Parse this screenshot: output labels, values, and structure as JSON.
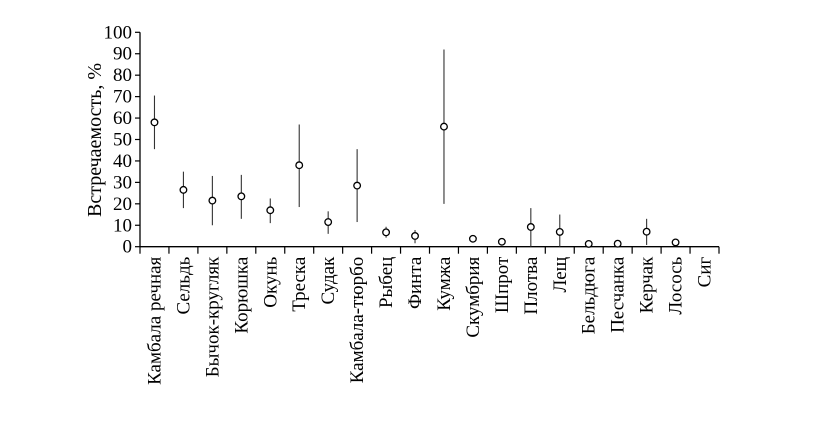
{
  "chart_data": {
    "type": "scatter",
    "title": "",
    "xlabel": "",
    "ylabel": "Встречаемость, %",
    "ylim": [
      0,
      100
    ],
    "yticks": [
      0,
      10,
      20,
      30,
      40,
      50,
      60,
      70,
      80,
      90,
      100
    ],
    "grid": false,
    "marker": "open-circle",
    "error_bars": true,
    "categories": [
      "Камбала речная",
      "Сельдь",
      "Бычок-кругляк",
      "Корюшка",
      "Окунь",
      "Треска",
      "Судак",
      "Камбала-тюрбо",
      "Рыбец",
      "Финта",
      "Кумжа",
      "Скумбрия",
      "Шпрот",
      "Плотва",
      "Лещ",
      "Бельдюга",
      "Песчанка",
      "Керчак",
      "Лосось",
      "Сиг"
    ],
    "values": [
      58,
      26.5,
      21.5,
      23.5,
      17,
      38,
      11.5,
      28.5,
      6.7,
      5,
      56,
      3.7,
      2.3,
      9.2,
      6.9,
      1.3,
      1.4,
      7,
      2,
      null
    ],
    "lower": [
      45.5,
      18,
      10,
      13,
      11,
      18.5,
      6,
      11.5,
      4.2,
      1.6,
      20,
      null,
      null,
      0,
      0,
      null,
      null,
      0.8,
      null,
      null
    ],
    "upper": [
      70.5,
      35,
      33,
      33.5,
      22.5,
      57,
      16.5,
      45.5,
      9.3,
      7.8,
      92,
      null,
      null,
      18,
      15,
      null,
      null,
      13,
      null,
      null
    ]
  }
}
